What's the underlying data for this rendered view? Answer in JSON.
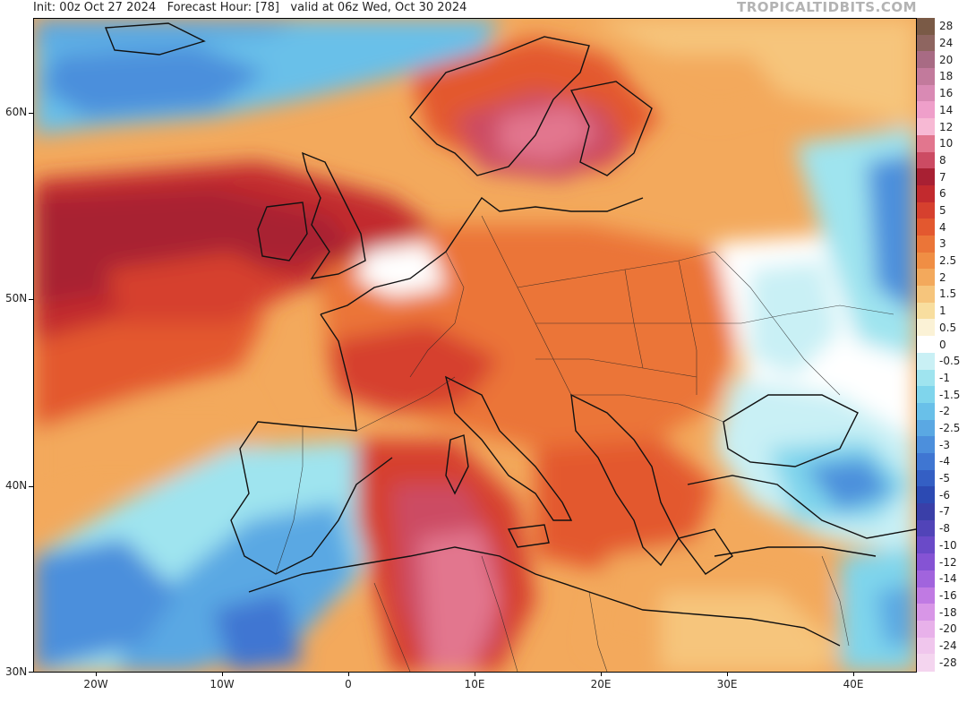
{
  "header": {
    "init": "Init: 00z Oct 27 2024",
    "forecast_hour": "Forecast Hour: [78]",
    "valid": "valid at 06z Wed, Oct 30 2024",
    "brand": "TROPICALTIDBITS.COM"
  },
  "axes": {
    "lat_labels": [
      "60N",
      "50N",
      "40N",
      "30N"
    ],
    "lon_labels": [
      "20W",
      "10W",
      "0",
      "10E",
      "20E",
      "30E",
      "40E"
    ]
  },
  "colorbar": {
    "labels": [
      "28",
      "24",
      "20",
      "18",
      "16",
      "14",
      "12",
      "10",
      "8",
      "7",
      "6",
      "5",
      "4",
      "3",
      "2.5",
      "2",
      "1.5",
      "1",
      "0.5",
      "0",
      "-0.5",
      "-1",
      "-1.5",
      "-2",
      "-2.5",
      "-3",
      "-4",
      "-5",
      "-6",
      "-7",
      "-8",
      "-10",
      "-12",
      "-14",
      "-16",
      "-18",
      "-20",
      "-24",
      "-28"
    ],
    "colors": [
      "#7a5a46",
      "#8e6560",
      "#a86b84",
      "#c27a9c",
      "#d98ab4",
      "#ef9fca",
      "#f7b9d4",
      "#e2768e",
      "#cc4b63",
      "#a82033",
      "#c22a2e",
      "#d6402e",
      "#e3582f",
      "#eb7538",
      "#f08e44",
      "#f3a95c",
      "#f6c57c",
      "#f8de9f",
      "#fbf2d6",
      "#ffffff",
      "#c9f0f5",
      "#9fe4ef",
      "#7fd5ec",
      "#69c0e9",
      "#5aa8e3",
      "#4c8fdc",
      "#3f76d2",
      "#345fc4",
      "#2c4ab3",
      "#3a3fa8",
      "#5144b8",
      "#6a4ac8",
      "#8553d4",
      "#a164dd",
      "#c07ae3",
      "#d896e7",
      "#e8b1ea",
      "#f0c6ed",
      "#f4d5ef"
    ]
  },
  "legend_order": "top-to-bottom"
}
